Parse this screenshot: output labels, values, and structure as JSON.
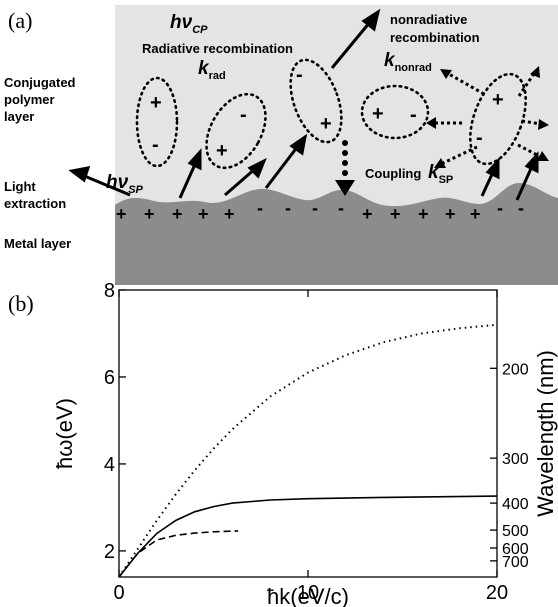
{
  "panel_a": {
    "label": "(a)",
    "side_labels": {
      "polymer_layer": "Conjugated\npolymer\nlayer",
      "light_extraction": "Light\nextraction",
      "metal_layer": "Metal layer"
    },
    "hv_cp": {
      "main": "hν",
      "sub": "CP"
    },
    "hv_sp": {
      "main": "hν",
      "sub": "SP"
    },
    "radiative": "Radiative recombination",
    "k_rad": {
      "main": "k",
      "sub": "rad"
    },
    "nonradiative": "nonradiative\nrecombination",
    "k_nonrad": {
      "main": "k",
      "sub": "nonrad"
    },
    "coupling": "Coupling",
    "k_sp": {
      "main": "k",
      "sub": "SP"
    },
    "plus": "+",
    "minus": "-",
    "colors": {
      "polymer": "#e4e4e4",
      "metal": "#8c8c8c"
    }
  },
  "panel_b": {
    "label": "(b)"
  },
  "chart_data": {
    "type": "line",
    "xlabel": "ħk(eV/c)",
    "ylabel": "ħω(eV)",
    "y2label": "Wavelength (nm)",
    "xlim": [
      0,
      20
    ],
    "ylim": [
      1.4,
      8
    ],
    "xticks": [
      0,
      10,
      20
    ],
    "yticks": [
      2,
      4,
      6,
      8
    ],
    "y2ticks": [
      {
        "label": "200",
        "nm": 200
      },
      {
        "label": "300",
        "nm": 300
      },
      {
        "label": "400",
        "nm": 400
      },
      {
        "label": "500",
        "nm": 500
      },
      {
        "label": "600",
        "nm": 600
      },
      {
        "label": "700",
        "nm": 700
      }
    ],
    "series": [
      {
        "style": "dotted",
        "x": [
          0,
          1,
          2,
          3,
          4,
          5,
          6,
          8,
          10,
          12,
          14,
          16,
          18,
          20
        ],
        "y": [
          1.4,
          2.05,
          2.7,
          3.3,
          3.85,
          4.35,
          4.8,
          5.55,
          6.1,
          6.5,
          6.8,
          7.0,
          7.12,
          7.2
        ]
      },
      {
        "style": "solid",
        "x": [
          0,
          1,
          2,
          3,
          4,
          5,
          6,
          8,
          10,
          14,
          20
        ],
        "y": [
          1.4,
          1.95,
          2.4,
          2.7,
          2.9,
          3.02,
          3.1,
          3.17,
          3.2,
          3.23,
          3.26
        ]
      },
      {
        "style": "dashed",
        "x": [
          0,
          1,
          2,
          3,
          4,
          5,
          6.3
        ],
        "y": [
          1.4,
          1.95,
          2.25,
          2.36,
          2.41,
          2.44,
          2.46
        ]
      }
    ]
  }
}
